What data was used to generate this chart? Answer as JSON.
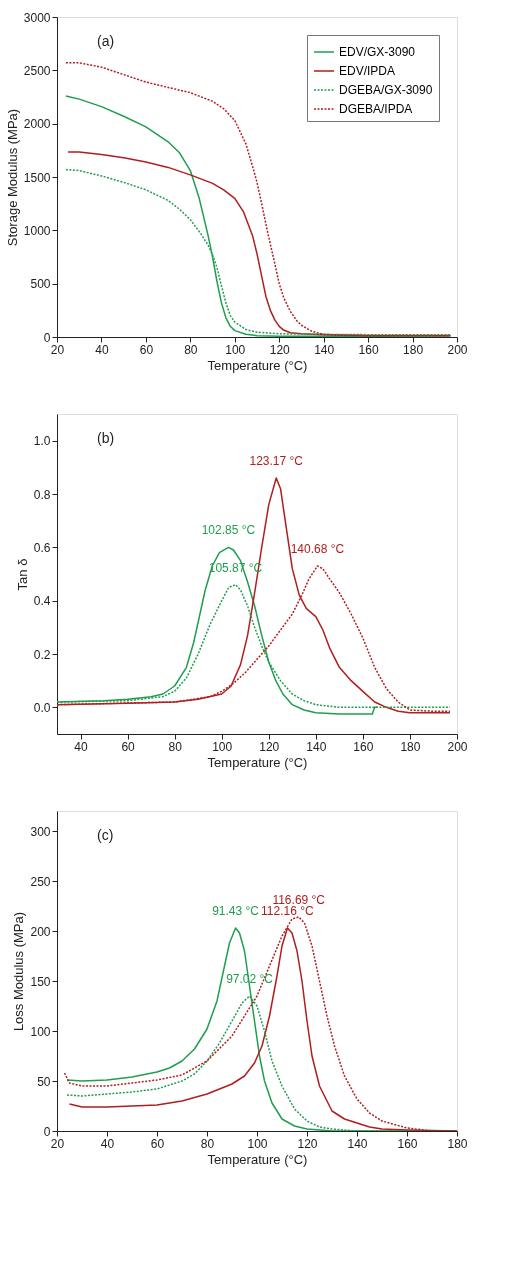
{
  "chart_data": [
    {
      "type": "line",
      "xlabel": "Temperature (°C)",
      "ylabel": "Storage Modulus (MPa)",
      "xlim": [
        20,
        200
      ],
      "xticks": [
        20,
        40,
        60,
        80,
        100,
        120,
        140,
        160,
        180,
        200
      ],
      "ylim": [
        0,
        3000
      ],
      "yticks": [
        0,
        500,
        1000,
        1500,
        2000,
        2500,
        3000
      ],
      "grid": false,
      "legend": "top right",
      "marker": "none",
      "annotations": [
        "(a)"
      ],
      "series": [
        {
          "name": "EDV/GX-3090",
          "color": "#1f9e4f",
          "line_style": "solid",
          "x": [
            24,
            30,
            40,
            50,
            60,
            70,
            75,
            80,
            84,
            88,
            90,
            92,
            94,
            96,
            98,
            100,
            105,
            110,
            120,
            140,
            160,
            197
          ],
          "values": [
            2260,
            2230,
            2160,
            2070,
            1970,
            1830,
            1730,
            1560,
            1300,
            950,
            750,
            520,
            320,
            180,
            100,
            60,
            25,
            12,
            8,
            8,
            8,
            10
          ]
        },
        {
          "name": "EDV/IPDA",
          "color": "#b01e1e",
          "line_style": "solid",
          "x": [
            25,
            30,
            40,
            50,
            60,
            70,
            80,
            90,
            95,
            100,
            104,
            108,
            110,
            112,
            114,
            116,
            118,
            120,
            122,
            125,
            130,
            140,
            160,
            197
          ],
          "values": [
            1735,
            1735,
            1710,
            1680,
            1640,
            1590,
            1520,
            1440,
            1380,
            1300,
            1170,
            950,
            780,
            580,
            380,
            250,
            160,
            100,
            65,
            40,
            30,
            22,
            15,
            15
          ]
        },
        {
          "name": "DGEBA/GX-3090",
          "color": "#1f9e4f",
          "line_style": "dotted",
          "x": [
            24,
            30,
            40,
            50,
            60,
            70,
            75,
            80,
            85,
            88,
            90,
            92,
            94,
            96,
            98,
            100,
            105,
            110,
            120,
            140,
            160,
            197
          ],
          "values": [
            1570,
            1560,
            1510,
            1450,
            1380,
            1280,
            1200,
            1100,
            960,
            860,
            770,
            650,
            480,
            320,
            200,
            140,
            70,
            45,
            30,
            25,
            22,
            22
          ]
        },
        {
          "name": "DGEBA/IPDA",
          "color": "#b01e1e",
          "line_style": "dotted",
          "x": [
            24,
            30,
            40,
            50,
            60,
            70,
            80,
            90,
            95,
            100,
            105,
            108,
            110,
            112,
            115,
            118,
            120,
            122,
            125,
            128,
            130,
            135,
            140,
            150,
            160,
            197
          ],
          "values": [
            2570,
            2570,
            2530,
            2460,
            2390,
            2340,
            2290,
            2210,
            2140,
            2030,
            1810,
            1600,
            1450,
            1260,
            960,
            690,
            500,
            370,
            240,
            150,
            110,
            50,
            25,
            15,
            12,
            12
          ]
        }
      ]
    },
    {
      "type": "line",
      "xlabel": "Temperature (°C)",
      "ylabel": "Tan δ",
      "xlim": [
        30,
        200
      ],
      "xticks": [
        40,
        60,
        80,
        100,
        120,
        140,
        160,
        180,
        200
      ],
      "ylim": [
        -0.1,
        1.1
      ],
      "yticks": [
        {
          "value": 0,
          "label": "0.0"
        },
        {
          "value": 0.2,
          "label": "0.2"
        },
        {
          "value": 0.4,
          "label": "0.4"
        },
        {
          "value": 0.6,
          "label": "0.6"
        },
        {
          "value": 0.8,
          "label": "0.8"
        },
        {
          "value": 1,
          "label": "1.0"
        }
      ],
      "grid": false,
      "legend": "top right",
      "marker": "none",
      "annotations": [
        "(b)",
        {
          "text": "102.85 °C",
          "x": 102.85,
          "y": 0.6
        },
        {
          "text": "105.87 °C",
          "x": 105.87,
          "y": 0.46
        },
        {
          "text": "123.17 °C",
          "x": 123.17,
          "y": 0.86
        },
        {
          "text": "140.68 °C",
          "x": 140.68,
          "y": 0.53
        }
      ],
      "series": [
        {
          "name": "EDV/GX-3090",
          "color": "#1f9e4f",
          "line_style": "solid",
          "x": [
            30,
            50,
            60,
            70,
            75,
            80,
            85,
            88,
            90,
            93,
            96,
            99,
            102.85,
            105,
            108,
            111,
            114,
            117,
            120,
            123,
            126,
            130,
            135,
            140,
            150,
            160,
            164,
            165,
            166
          ],
          "values": [
            0.02,
            0.025,
            0.03,
            0.04,
            0.05,
            0.08,
            0.15,
            0.24,
            0.32,
            0.44,
            0.53,
            0.58,
            0.6,
            0.59,
            0.55,
            0.47,
            0.38,
            0.27,
            0.17,
            0.1,
            0.05,
            0.01,
            -0.01,
            -0.02,
            -0.025,
            -0.025,
            -0.025,
            0.0,
            0.0
          ]
        },
        {
          "name": "EDV/IPDA",
          "color": "#b01e1e",
          "line_style": "solid",
          "x": [
            30,
            60,
            80,
            90,
            100,
            104,
            108,
            111,
            114,
            117,
            120,
            123.17,
            125,
            127,
            130,
            133,
            136,
            140,
            143,
            146,
            150,
            155,
            160,
            165,
            170,
            175,
            180,
            197
          ],
          "values": [
            0.01,
            0.015,
            0.02,
            0.03,
            0.05,
            0.08,
            0.16,
            0.27,
            0.43,
            0.6,
            0.76,
            0.86,
            0.82,
            0.7,
            0.52,
            0.42,
            0.37,
            0.34,
            0.29,
            0.22,
            0.15,
            0.1,
            0.06,
            0.02,
            0.0,
            -0.015,
            -0.02,
            -0.02
          ]
        },
        {
          "name": "DGEBA/GX-3090",
          "color": "#1f9e4f",
          "line_style": "dotted",
          "x": [
            30,
            60,
            75,
            80,
            85,
            90,
            95,
            100,
            103,
            105.87,
            108,
            111,
            114,
            117,
            120,
            125,
            130,
            135,
            140,
            150,
            197
          ],
          "values": [
            0.02,
            0.025,
            0.04,
            0.06,
            0.11,
            0.2,
            0.31,
            0.4,
            0.45,
            0.46,
            0.44,
            0.38,
            0.3,
            0.23,
            0.17,
            0.1,
            0.05,
            0.025,
            0.01,
            0.0,
            0.0
          ]
        },
        {
          "name": "DGEBA/IPDA",
          "color": "#b01e1e",
          "line_style": "dotted",
          "x": [
            30,
            80,
            95,
            100,
            105,
            110,
            115,
            120,
            125,
            130,
            134,
            137,
            140.68,
            143,
            146,
            150,
            155,
            160,
            165,
            170,
            175,
            180,
            190,
            197
          ],
          "values": [
            0.01,
            0.02,
            0.04,
            0.06,
            0.09,
            0.13,
            0.18,
            0.23,
            0.29,
            0.35,
            0.42,
            0.48,
            0.53,
            0.52,
            0.48,
            0.43,
            0.35,
            0.26,
            0.15,
            0.07,
            0.02,
            -0.01,
            -0.015,
            -0.015
          ]
        }
      ]
    },
    {
      "type": "line",
      "xlabel": "Temperature (°C)",
      "ylabel": "Loss Modulus (MPa)",
      "xlim": [
        20,
        180
      ],
      "xticks": [
        20,
        40,
        60,
        80,
        100,
        120,
        140,
        160,
        180
      ],
      "ylim": [
        0,
        320
      ],
      "yticks": [
        0,
        50,
        100,
        150,
        200,
        250,
        300
      ],
      "grid": false,
      "legend": "top right",
      "marker": "none",
      "annotations": [
        "(c)",
        {
          "text": "91.43 °C",
          "x": 91.43,
          "y": 203
        },
        {
          "text": "97.02 °C",
          "x": 97.02,
          "y": 135
        },
        {
          "text": "112.16 °C",
          "x": 112.16,
          "y": 203
        },
        {
          "text": "116.69 °C",
          "x": 116.69,
          "y": 214
        }
      ],
      "series": [
        {
          "name": "EDV/GX-3090",
          "color": "#1f9e4f",
          "line_style": "solid",
          "x": [
            24,
            30,
            40,
            50,
            60,
            65,
            70,
            75,
            80,
            84,
            87,
            89,
            91.43,
            93,
            95,
            97,
            99,
            101,
            103,
            106,
            110,
            115,
            120,
            130,
            180
          ],
          "values": [
            51,
            50,
            51,
            54,
            59,
            63,
            70,
            82,
            102,
            130,
            165,
            188,
            203,
            198,
            180,
            145,
            110,
            75,
            50,
            28,
            12,
            5,
            2,
            0,
            0
          ]
        },
        {
          "name": "EDV/IPDA",
          "color": "#b01e1e",
          "line_style": "solid",
          "x": [
            25,
            30,
            40,
            50,
            60,
            70,
            80,
            90,
            95,
            99,
            102,
            105,
            108,
            110,
            112.16,
            114,
            116,
            118,
            120,
            122,
            125,
            130,
            135,
            140,
            145,
            150,
            160,
            180
          ],
          "values": [
            27,
            24,
            24,
            25,
            26,
            30,
            37,
            47,
            55,
            68,
            85,
            115,
            155,
            185,
            203,
            198,
            180,
            150,
            110,
            75,
            45,
            20,
            12,
            8,
            4,
            2,
            1,
            0
          ]
        },
        {
          "name": "DGEBA/GX-3090",
          "color": "#1f9e4f",
          "line_style": "dotted",
          "x": [
            24,
            30,
            40,
            50,
            60,
            70,
            75,
            80,
            85,
            90,
            94,
            97.02,
            100,
            103,
            106,
            110,
            115,
            120,
            125,
            130,
            140,
            180
          ],
          "values": [
            36,
            35,
            37,
            39,
            42,
            50,
            57,
            70,
            88,
            110,
            128,
            135,
            125,
            100,
            70,
            45,
            22,
            10,
            4,
            2,
            0,
            0
          ]
        },
        {
          "name": "DGEBA/IPDA",
          "color": "#b01e1e",
          "line_style": "dotted",
          "x": [
            23,
            25,
            30,
            40,
            50,
            60,
            70,
            80,
            90,
            100,
            105,
            110,
            114,
            116.69,
            119,
            122,
            125,
            128,
            131,
            135,
            140,
            145,
            150,
            160,
            170,
            180
          ],
          "values": [
            58,
            48,
            45,
            45,
            48,
            51,
            56,
            70,
            95,
            135,
            165,
            195,
            212,
            214,
            208,
            185,
            150,
            115,
            85,
            55,
            32,
            18,
            10,
            3,
            0,
            0
          ]
        }
      ]
    }
  ]
}
